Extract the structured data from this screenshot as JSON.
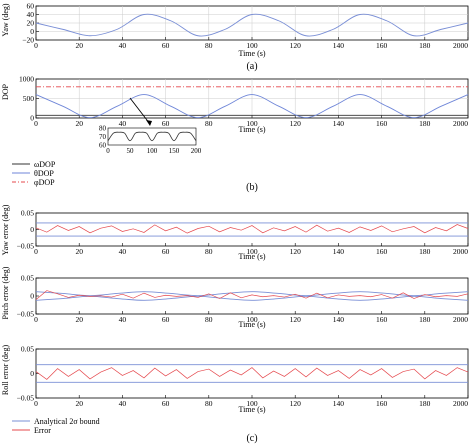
{
  "colors": {
    "yaw_line": "#7a8fd6",
    "omega_dop": "#333333",
    "theta_dop": "#6f86d8",
    "phi_dop": "#e5484d",
    "bound": "#7a8fd6",
    "error": "#e5484d",
    "axis": "#000000"
  },
  "labels": {
    "panel_a": "(a)",
    "panel_b": "(b)",
    "panel_c": "(c)"
  },
  "chart_data": [
    {
      "id": "yaw",
      "type": "line",
      "xlabel": "Time (s)",
      "ylabel": "Yaw (deg)",
      "xlim": [
        0,
        2000
      ],
      "ylim": [
        -20,
        60
      ],
      "xticks": [
        "0",
        "20",
        "40",
        "60",
        "80",
        "100",
        "120",
        "140",
        "160",
        "180",
        "200"
      ],
      "yticks": [
        "60",
        "40",
        "20",
        "0",
        "−20"
      ],
      "series": [
        {
          "x": [
            0,
            125,
            250,
            375,
            500,
            625,
            750,
            875,
            1000,
            1125,
            1250,
            1375,
            1500,
            1625,
            1750,
            1875,
            2000
          ],
          "y": [
            20,
            5,
            -10,
            5,
            40,
            25,
            -10,
            5,
            40,
            25,
            -10,
            5,
            40,
            25,
            -10,
            5,
            20
          ]
        }
      ]
    },
    {
      "id": "dop",
      "type": "line",
      "xlabel": "Time (s)",
      "ylabel": "DOP",
      "xlim": [
        0,
        2000
      ],
      "ylim": [
        0,
        1000
      ],
      "xticks": [
        "0",
        "20",
        "40",
        "60",
        "80",
        "100",
        "120",
        "140",
        "160",
        "180",
        "200"
      ],
      "yticks": [
        "1000",
        "500",
        "0"
      ],
      "legend": [
        "ωDOP",
        "θDOP",
        "φDOP"
      ],
      "series": [
        {
          "name": "ωDOP",
          "x": [
            0,
            2000
          ],
          "y": [
            70,
            70
          ]
        },
        {
          "name": "θDOP",
          "x": [
            0,
            125,
            250,
            375,
            500,
            625,
            750,
            875,
            1000,
            1125,
            1250,
            1375,
            1500,
            1625,
            1750,
            1875,
            2000
          ],
          "y": [
            600,
            300,
            10,
            300,
            600,
            300,
            10,
            300,
            600,
            300,
            10,
            300,
            600,
            300,
            10,
            300,
            600
          ]
        },
        {
          "name": "φDOP",
          "x": [
            0,
            2000
          ],
          "y": [
            800,
            800
          ]
        }
      ],
      "inset": {
        "xlim": [
          0,
          200
        ],
        "ylim": [
          60,
          80
        ],
        "xticks": [
          "0",
          "50",
          "100",
          "150",
          "200"
        ],
        "yticks": [
          "80",
          "70",
          "60"
        ],
        "x": [
          0,
          12.5,
          25,
          37.5,
          50,
          62.5,
          75,
          87.5,
          100,
          112.5,
          125,
          137.5,
          150,
          162.5,
          175,
          187.5,
          200
        ],
        "y": [
          65,
          74,
          75,
          74,
          65,
          74,
          75,
          74,
          65,
          74,
          75,
          74,
          65,
          74,
          75,
          74,
          65
        ]
      }
    },
    {
      "id": "yaw_error",
      "type": "line",
      "xlabel": "Time (s)",
      "ylabel": "Yaw error (deg)",
      "xlim": [
        0,
        2000
      ],
      "ylim": [
        -0.05,
        0.05
      ],
      "xticks": [
        "0",
        "20",
        "40",
        "60",
        "80",
        "100",
        "120",
        "140",
        "160",
        "180",
        "200"
      ],
      "yticks": [
        "0.05",
        "0",
        "−0.05"
      ],
      "series": [
        {
          "name": "bound_upper",
          "x": [
            0,
            2000
          ],
          "y": [
            0.02,
            0.02
          ]
        },
        {
          "name": "bound_lower",
          "x": [
            0,
            2000
          ],
          "y": [
            -0.02,
            -0.02
          ]
        },
        {
          "name": "error",
          "x": [
            0,
            50,
            100,
            150,
            200,
            250,
            300,
            350,
            400,
            450,
            500,
            550,
            600,
            650,
            700,
            750,
            800,
            850,
            900,
            950,
            1000,
            1050,
            1100,
            1150,
            1200,
            1250,
            1300,
            1350,
            1400,
            1450,
            1500,
            1550,
            1600,
            1650,
            1700,
            1750,
            1800,
            1850,
            1900,
            1950,
            2000
          ],
          "y": [
            0.005,
            -0.008,
            0.012,
            -0.003,
            0.009,
            -0.01,
            0.004,
            0.011,
            -0.006,
            0.002,
            -0.009,
            0.014,
            -0.004,
            0.007,
            -0.011,
            0.003,
            0.01,
            -0.007,
            0.006,
            -0.002,
            0.012,
            -0.01,
            0.005,
            -0.004,
            0.009,
            -0.008,
            0.013,
            -0.005,
            0.004,
            -0.009,
            0.008,
            -0.003,
            0.011,
            -0.007,
            0.002,
            0.009,
            -0.01,
            0.006,
            -0.004,
            0.015,
            0.003
          ]
        }
      ]
    },
    {
      "id": "pitch_error",
      "type": "line",
      "xlabel": "Time (s)",
      "ylabel": "Pitch error (deg)",
      "xlim": [
        0,
        2000
      ],
      "ylim": [
        -0.05,
        0.05
      ],
      "xticks": [
        "0",
        "20",
        "40",
        "60",
        "80",
        "100",
        "120",
        "140",
        "160",
        "180",
        "200"
      ],
      "yticks": [
        "0.05",
        "0",
        "−0.05"
      ],
      "series": [
        {
          "name": "bound_upper",
          "x": [
            0,
            125,
            250,
            375,
            500,
            625,
            750,
            875,
            1000,
            1125,
            1250,
            1375,
            1500,
            1625,
            1750,
            1875,
            2000
          ],
          "y": [
            0.012,
            0.007,
            0.001,
            0.007,
            0.012,
            0.007,
            0.001,
            0.007,
            0.012,
            0.007,
            0.001,
            0.007,
            0.012,
            0.007,
            0.001,
            0.007,
            0.012
          ]
        },
        {
          "name": "bound_lower",
          "x": [
            0,
            125,
            250,
            375,
            500,
            625,
            750,
            875,
            1000,
            1125,
            1250,
            1375,
            1500,
            1625,
            1750,
            1875,
            2000
          ],
          "y": [
            -0.012,
            -0.007,
            -0.001,
            -0.007,
            -0.012,
            -0.007,
            -0.001,
            -0.007,
            -0.012,
            -0.007,
            -0.001,
            -0.007,
            -0.012,
            -0.007,
            -0.001,
            -0.007,
            -0.012
          ]
        },
        {
          "name": "error",
          "x": [
            0,
            50,
            100,
            150,
            200,
            250,
            300,
            350,
            400,
            450,
            500,
            550,
            600,
            650,
            700,
            750,
            800,
            850,
            900,
            950,
            1000,
            1050,
            1100,
            1150,
            1200,
            1250,
            1300,
            1350,
            1400,
            1450,
            1500,
            1550,
            1600,
            1650,
            1700,
            1750,
            1800,
            1850,
            1900,
            1950,
            2000
          ],
          "y": [
            -0.01,
            0.015,
            0.006,
            -0.004,
            0.002,
            -0.001,
            0.0005,
            -0.003,
            0.005,
            -0.006,
            0.008,
            -0.004,
            0.002,
            -0.001,
            0.001,
            -0.004,
            0.006,
            -0.007,
            0.009,
            -0.005,
            0.003,
            -0.002,
            0.001,
            -0.003,
            0.005,
            -0.006,
            0.008,
            -0.005,
            0.003,
            -0.001,
            0.001,
            -0.002,
            0.004,
            -0.006,
            0.009,
            -0.007,
            0.004,
            -0.002,
            0.001,
            -0.001,
            0.006
          ]
        }
      ]
    },
    {
      "id": "roll_error",
      "type": "line",
      "xlabel": "Time (s)",
      "ylabel": "Roll error (deg)",
      "xlim": [
        0,
        2000
      ],
      "ylim": [
        -0.05,
        0.05
      ],
      "xticks": [
        "0",
        "20",
        "40",
        "60",
        "80",
        "100",
        "120",
        "140",
        "160",
        "180",
        "200"
      ],
      "yticks": [
        "0.05",
        "0",
        "−0.05"
      ],
      "legend": [
        "Analytical 2σ bound",
        "Error"
      ],
      "series": [
        {
          "name": "bound_upper",
          "x": [
            0,
            2000
          ],
          "y": [
            0.018,
            0.018
          ]
        },
        {
          "name": "bound_lower",
          "x": [
            0,
            2000
          ],
          "y": [
            -0.018,
            -0.018
          ]
        },
        {
          "name": "error",
          "x": [
            0,
            50,
            100,
            150,
            200,
            250,
            300,
            350,
            400,
            450,
            500,
            550,
            600,
            650,
            700,
            750,
            800,
            850,
            900,
            950,
            1000,
            1050,
            1100,
            1150,
            1200,
            1250,
            1300,
            1350,
            1400,
            1450,
            1500,
            1550,
            1600,
            1650,
            1700,
            1750,
            1800,
            1850,
            1900,
            1950,
            2000
          ],
          "y": [
            0.004,
            -0.012,
            0.01,
            -0.006,
            0.008,
            -0.011,
            0.003,
            0.012,
            -0.004,
            0.006,
            -0.009,
            0.011,
            -0.005,
            0.008,
            -0.01,
            0.004,
            0.009,
            -0.006,
            0.007,
            -0.003,
            0.012,
            -0.009,
            0.005,
            -0.006,
            0.01,
            -0.007,
            0.011,
            -0.004,
            0.006,
            -0.01,
            0.008,
            -0.003,
            0.01,
            -0.008,
            0.004,
            0.009,
            -0.011,
            0.006,
            -0.004,
            0.012,
            0.003
          ]
        }
      ]
    }
  ]
}
